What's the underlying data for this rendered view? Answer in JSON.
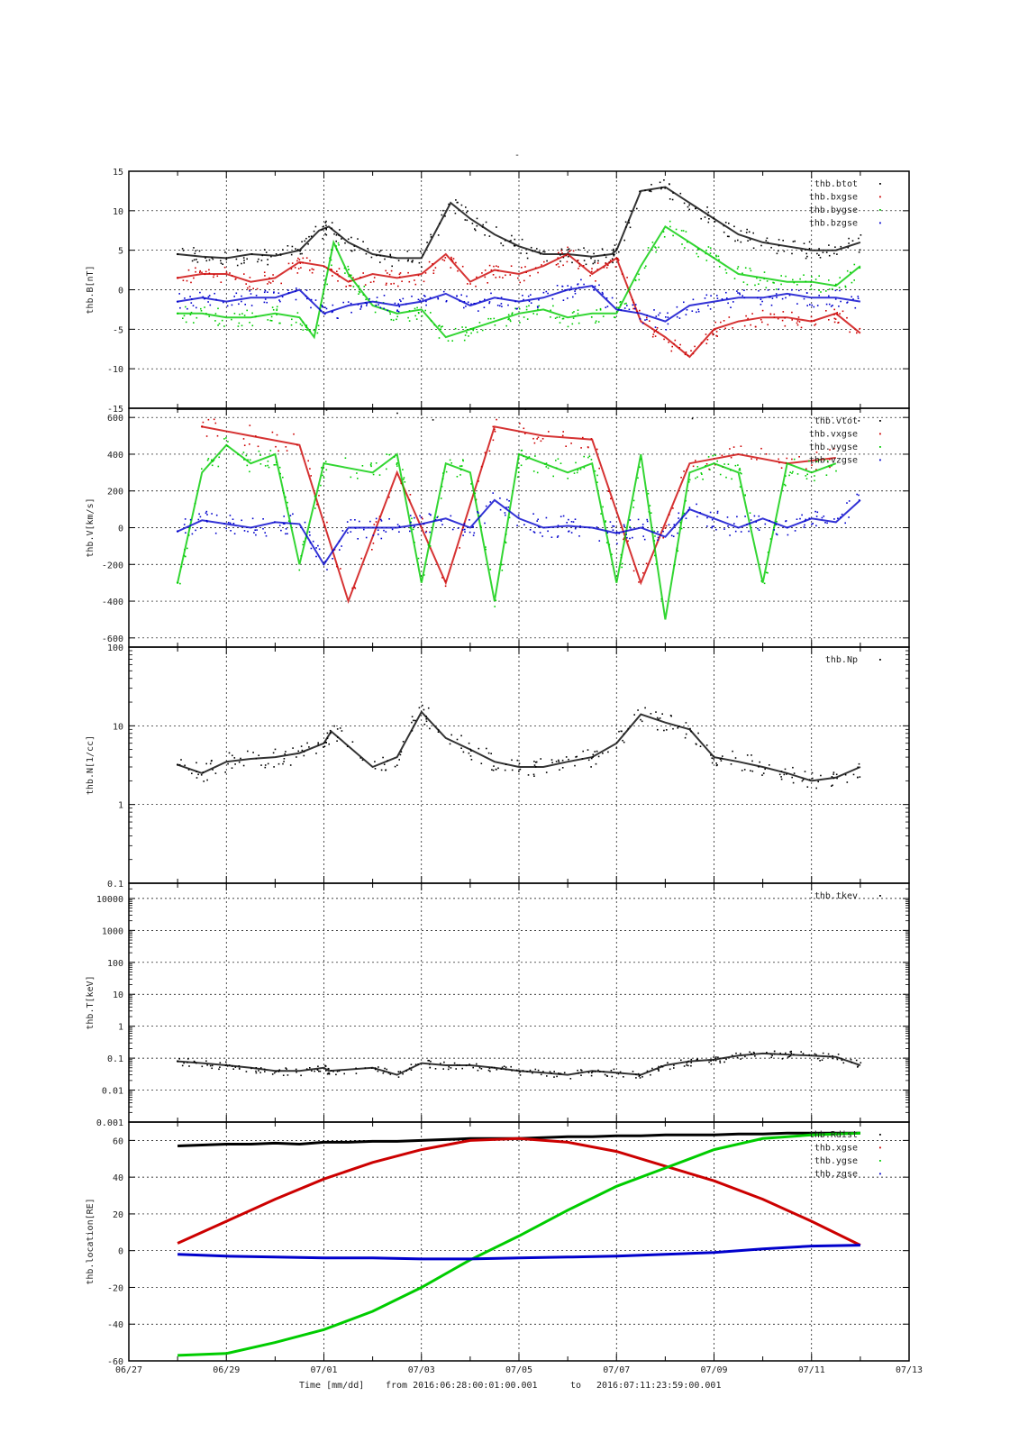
{
  "figure": {
    "top_mark": "-",
    "footer": {
      "time_label": "Time [mm/dd]",
      "from_label": "from 2016:06:28:00:01:00.001",
      "to_label": "to",
      "to_value": "2016:07:11:23:59:00.001"
    }
  },
  "colors": {
    "black": "#000000",
    "red": "#cc0000",
    "green": "#00cc00",
    "blue": "#0000cc"
  },
  "chart_data": [
    {
      "type": "scatter",
      "panel": "B",
      "ylabel": "thb.B[nT]",
      "ylim": [
        -15,
        15
      ],
      "yticks": [
        -15,
        -10,
        -5,
        0,
        5,
        10,
        15
      ],
      "ytick_labels": [
        "-15",
        "-10",
        "-5",
        "0",
        "5",
        "10",
        "15"
      ],
      "yscale": "linear",
      "grid": true,
      "legend": "top-right",
      "x_unit": "days since 06/27",
      "series": [
        {
          "name": "thb.btot",
          "color": "#000000",
          "x": [
            1.0,
            1.5,
            2.0,
            2.5,
            3.0,
            3.5,
            3.9,
            4.1,
            4.5,
            5.0,
            5.5,
            6.0,
            6.6,
            7.0,
            7.5,
            8.0,
            8.5,
            9.0,
            9.5,
            9.9,
            10.0,
            10.5,
            11.0,
            11.5,
            12.0,
            12.5,
            13.0,
            13.5,
            14.0,
            14.5,
            15.0
          ],
          "y": [
            4.5,
            4.2,
            4.0,
            4.5,
            4.3,
            5.0,
            7.5,
            8.0,
            6.0,
            4.5,
            4.0,
            4.0,
            11.0,
            9.0,
            7.0,
            5.5,
            4.5,
            4.5,
            4.2,
            4.5,
            5.0,
            12.5,
            13.0,
            11.0,
            9.0,
            7.0,
            6.0,
            5.5,
            5.0,
            5.0,
            6.0
          ]
        },
        {
          "name": "thb.bxgse",
          "color": "#cc0000",
          "x": [
            1.0,
            1.5,
            2.0,
            2.5,
            3.0,
            3.5,
            4.0,
            4.5,
            5.0,
            5.5,
            6.0,
            6.5,
            7.0,
            7.5,
            8.0,
            8.5,
            9.0,
            9.5,
            10.0,
            10.5,
            11.0,
            11.5,
            12.0,
            12.5,
            13.0,
            13.5,
            14.0,
            14.5,
            15.0
          ],
          "y": [
            1.5,
            2.0,
            2.0,
            1.0,
            1.5,
            3.5,
            3.0,
            1.0,
            2.0,
            1.5,
            2.0,
            4.5,
            1.0,
            2.5,
            2.0,
            3.0,
            4.5,
            2.0,
            4.0,
            -4.0,
            -6.0,
            -8.5,
            -5.0,
            -4.0,
            -3.5,
            -3.5,
            -4.0,
            -3.0,
            -5.5
          ]
        },
        {
          "name": "thb.bygse",
          "color": "#00cc00",
          "x": [
            1.0,
            1.5,
            2.0,
            2.5,
            3.0,
            3.5,
            3.8,
            4.2,
            4.5,
            5.0,
            5.5,
            6.0,
            6.5,
            7.0,
            7.5,
            8.0,
            8.5,
            9.0,
            9.5,
            10.0,
            10.5,
            11.0,
            11.5,
            12.0,
            12.5,
            13.0,
            13.5,
            14.0,
            14.5,
            15.0
          ],
          "y": [
            -3.0,
            -3.0,
            -3.5,
            -3.5,
            -3.0,
            -3.5,
            -6.0,
            6.0,
            2.0,
            -2.0,
            -3.0,
            -2.5,
            -6.0,
            -5.0,
            -4.0,
            -3.0,
            -2.5,
            -3.5,
            -3.0,
            -3.0,
            3.0,
            8.0,
            6.0,
            4.0,
            2.0,
            1.5,
            1.0,
            1.0,
            0.5,
            3.0
          ]
        },
        {
          "name": "thb.bzgse",
          "color": "#0000cc",
          "x": [
            1.0,
            1.5,
            2.0,
            2.5,
            3.0,
            3.5,
            4.0,
            4.5,
            5.0,
            5.5,
            6.0,
            6.5,
            7.0,
            7.5,
            8.0,
            8.5,
            9.0,
            9.5,
            10.0,
            10.5,
            11.0,
            11.5,
            12.0,
            12.5,
            13.0,
            13.5,
            14.0,
            14.5,
            15.0
          ],
          "y": [
            -1.5,
            -1.0,
            -1.5,
            -1.0,
            -1.0,
            0.0,
            -3.0,
            -2.0,
            -1.5,
            -2.0,
            -1.5,
            -0.5,
            -2.0,
            -1.0,
            -1.5,
            -1.0,
            0.0,
            0.5,
            -2.5,
            -3.0,
            -4.0,
            -2.0,
            -1.5,
            -1.0,
            -1.0,
            -0.5,
            -1.0,
            -1.0,
            -1.5
          ]
        }
      ]
    },
    {
      "type": "scatter",
      "panel": "V",
      "ylabel": "thb.V[km/s]",
      "ylim": [
        -650,
        650
      ],
      "yticks": [
        -600,
        -400,
        -200,
        0,
        200,
        400,
        600
      ],
      "ytick_labels": [
        "-600",
        "-400",
        "-200",
        "0",
        "200",
        "400",
        "600"
      ],
      "yscale": "linear",
      "grid": true,
      "legend": "top-right",
      "series": [
        {
          "name": "thb.vtot",
          "color": "#000000",
          "x": [
            1.0,
            3.0,
            5.0,
            7.0,
            9.0,
            11.0,
            13.0,
            15.0
          ],
          "y": [
            645,
            645,
            645,
            645,
            645,
            645,
            645,
            645
          ]
        },
        {
          "name": "thb.vxgse",
          "color": "#cc0000",
          "x": [
            1.5,
            2.5,
            3.5,
            4.5,
            5.5,
            6.5,
            7.5,
            8.5,
            9.5,
            10.5,
            11.5,
            12.5,
            13.5,
            14.5
          ],
          "y": [
            550,
            500,
            450,
            -400,
            300,
            -300,
            550,
            500,
            480,
            -300,
            350,
            400,
            350,
            380
          ]
        },
        {
          "name": "thb.vygse",
          "color": "#00cc00",
          "x": [
            1.0,
            1.5,
            2.0,
            2.5,
            3.0,
            3.5,
            4.0,
            5.0,
            5.5,
            6.0,
            6.5,
            7.0,
            7.5,
            8.0,
            8.5,
            9.0,
            9.5,
            10.0,
            10.5,
            11.0,
            11.5,
            12.0,
            12.5,
            13.0,
            13.5,
            14.0,
            14.5
          ],
          "y": [
            -300,
            300,
            450,
            350,
            400,
            -200,
            350,
            300,
            400,
            -300,
            350,
            300,
            -400,
            400,
            350,
            300,
            350,
            -300,
            400,
            -500,
            300,
            350,
            300,
            -300,
            350,
            300,
            350
          ]
        },
        {
          "name": "thb.vzgse",
          "color": "#0000cc",
          "x": [
            1.0,
            1.5,
            2.0,
            2.5,
            3.0,
            3.5,
            4.0,
            4.5,
            5.0,
            5.5,
            6.0,
            6.5,
            7.0,
            7.5,
            8.0,
            8.5,
            9.0,
            9.5,
            10.0,
            10.5,
            11.0,
            11.5,
            12.0,
            12.5,
            13.0,
            13.5,
            14.0,
            14.5,
            15.0
          ],
          "y": [
            -20,
            40,
            20,
            0,
            30,
            20,
            -200,
            0,
            0,
            0,
            20,
            50,
            0,
            150,
            50,
            0,
            10,
            0,
            -30,
            0,
            -50,
            100,
            50,
            0,
            50,
            0,
            50,
            30,
            150
          ]
        }
      ]
    },
    {
      "type": "scatter",
      "panel": "N",
      "ylabel": "thb.N[1/cc]",
      "ylim": [
        0.1,
        100
      ],
      "yticks": [
        0.1,
        1,
        10,
        100
      ],
      "ytick_labels": [
        "0.1",
        "1",
        "10",
        "100"
      ],
      "yscale": "log",
      "grid": true,
      "legend": "top-right",
      "series": [
        {
          "name": "thb.Np",
          "color": "#000000",
          "x": [
            1.0,
            1.5,
            2.0,
            2.5,
            3.0,
            3.5,
            4.0,
            4.15,
            5.0,
            5.5,
            6.0,
            6.5,
            7.0,
            7.5,
            8.0,
            8.5,
            9.0,
            9.5,
            10.0,
            10.5,
            11.0,
            11.5,
            12.0,
            12.5,
            13.0,
            13.5,
            14.0,
            14.5,
            15.0
          ],
          "y": [
            3.2,
            2.5,
            3.5,
            3.8,
            4.0,
            4.5,
            6.0,
            8.5,
            3.0,
            4.0,
            15.0,
            7.0,
            5.0,
            3.5,
            3.0,
            3.0,
            3.5,
            4.0,
            6.0,
            14.0,
            11.0,
            9.0,
            4.0,
            3.5,
            3.0,
            2.5,
            2.0,
            2.2,
            3.0
          ]
        }
      ]
    },
    {
      "type": "scatter",
      "panel": "T",
      "ylabel": "thb.T[keV]",
      "ylim": [
        0.001,
        30000
      ],
      "yticks": [
        0.001,
        0.01,
        0.1,
        1,
        10,
        100,
        1000,
        10000
      ],
      "ytick_labels": [
        "0.001",
        "0.01",
        "0.1",
        "1",
        "10",
        "100",
        "1000",
        "10000"
      ],
      "yscale": "log",
      "grid": true,
      "legend": "top-right",
      "series": [
        {
          "name": "thb.tkev",
          "color": "#000000",
          "x": [
            1.0,
            1.5,
            2.0,
            2.5,
            3.0,
            3.5,
            4.0,
            4.1,
            5.0,
            5.5,
            6.0,
            6.5,
            7.0,
            7.5,
            8.0,
            8.5,
            9.0,
            9.5,
            10.0,
            10.5,
            11.0,
            11.5,
            12.0,
            12.5,
            13.0,
            13.5,
            14.0,
            14.5,
            15.0
          ],
          "y": [
            0.08,
            0.07,
            0.06,
            0.05,
            0.04,
            0.04,
            0.05,
            0.04,
            0.05,
            0.03,
            0.07,
            0.06,
            0.06,
            0.05,
            0.04,
            0.035,
            0.03,
            0.04,
            0.035,
            0.03,
            0.06,
            0.08,
            0.09,
            0.12,
            0.14,
            0.13,
            0.12,
            0.11,
            0.06
          ]
        }
      ]
    },
    {
      "type": "line",
      "panel": "location",
      "ylabel": "thb.location[RE]",
      "ylim": [
        -60,
        70
      ],
      "yticks": [
        -60,
        -40,
        -20,
        0,
        20,
        40,
        60
      ],
      "ytick_labels": [
        "-60",
        "-40",
        "-20",
        "0",
        "20",
        "40",
        "60"
      ],
      "yscale": "linear",
      "grid": true,
      "legend": "top-right",
      "series": [
        {
          "name": "thb.Rdist",
          "color": "#000000",
          "x": [
            1.0,
            1.5,
            2.0,
            2.5,
            3.0,
            3.5,
            4.0,
            4.5,
            5.0,
            5.5,
            6.0,
            6.5,
            7.0,
            7.5,
            8.0,
            8.5,
            9.0,
            9.5,
            10.0,
            10.5,
            11.0,
            11.5,
            12.0,
            12.5,
            13.0,
            13.5,
            14.0,
            14.5,
            15.0
          ],
          "y": [
            57,
            57.5,
            58,
            58,
            58.5,
            58,
            59,
            59,
            59.5,
            59.5,
            60,
            60.5,
            61,
            61,
            61,
            61.5,
            62,
            62,
            62.5,
            62.5,
            63,
            63,
            63,
            63.5,
            63.5,
            64,
            64,
            64,
            64
          ]
        },
        {
          "name": "thb.xgse",
          "color": "#cc0000",
          "x": [
            1.0,
            2.0,
            3.0,
            4.0,
            5.0,
            6.0,
            7.0,
            8.0,
            9.0,
            10.0,
            11.0,
            12.0,
            13.0,
            14.0,
            15.0
          ],
          "y": [
            4,
            16,
            28,
            39,
            48,
            55,
            60,
            61,
            59,
            54,
            46,
            38,
            28,
            16,
            3
          ]
        },
        {
          "name": "thb.ygse",
          "color": "#00cc00",
          "x": [
            1.0,
            2.0,
            3.0,
            4.0,
            5.0,
            6.0,
            7.0,
            8.0,
            9.0,
            10.0,
            11.0,
            12.0,
            13.0,
            14.0,
            15.0
          ],
          "y": [
            -57,
            -56,
            -50,
            -43,
            -33,
            -20,
            -5,
            8,
            22,
            35,
            45,
            55,
            61,
            63,
            64
          ]
        },
        {
          "name": "thb.zgse",
          "color": "#0000cc",
          "x": [
            1.0,
            2.0,
            3.0,
            4.0,
            5.0,
            6.0,
            7.0,
            8.0,
            9.0,
            10.0,
            11.0,
            12.0,
            13.0,
            14.0,
            15.0
          ],
          "y": [
            -2,
            -3,
            -3.5,
            -4,
            -4,
            -4.5,
            -4.5,
            -4,
            -3.5,
            -3,
            -2,
            -1,
            1,
            2.5,
            3
          ]
        }
      ]
    }
  ],
  "xaxis": {
    "xlim": [
      0,
      16
    ],
    "ticks": [
      0,
      2,
      4,
      6,
      8,
      10,
      12,
      14,
      16
    ],
    "tick_labels": [
      "06/27",
      "06/29",
      "07/01",
      "07/03",
      "07/05",
      "07/07",
      "07/09",
      "07/11",
      "07/13"
    ]
  }
}
